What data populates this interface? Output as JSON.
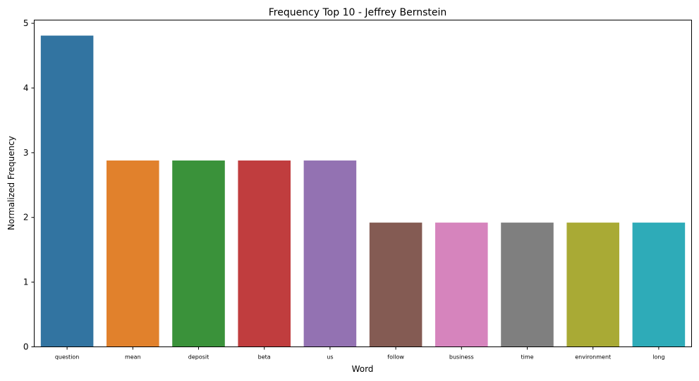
{
  "chart_data": {
    "type": "bar",
    "title": "Frequency Top 10 - Jeffrey Bernstein",
    "xlabel": "Word",
    "ylabel": "Normalized Frequency",
    "categories": [
      "question",
      "mean",
      "deposit",
      "beta",
      "us",
      "follow",
      "business",
      "time",
      "environment",
      "long"
    ],
    "values": [
      4.81,
      2.88,
      2.88,
      2.88,
      2.88,
      1.92,
      1.92,
      1.92,
      1.92,
      1.92
    ],
    "colors": [
      "#3274a1",
      "#e1812c",
      "#3a923a",
      "#c03d3e",
      "#9372b2",
      "#845b53",
      "#d684bd",
      "#7f7f7f",
      "#a9aa35",
      "#2eabb8"
    ],
    "yticks": [
      "0",
      "1",
      "2",
      "3",
      "4",
      "5"
    ],
    "ylim": [
      0,
      5.05
    ],
    "grid": false,
    "legend": "none"
  }
}
